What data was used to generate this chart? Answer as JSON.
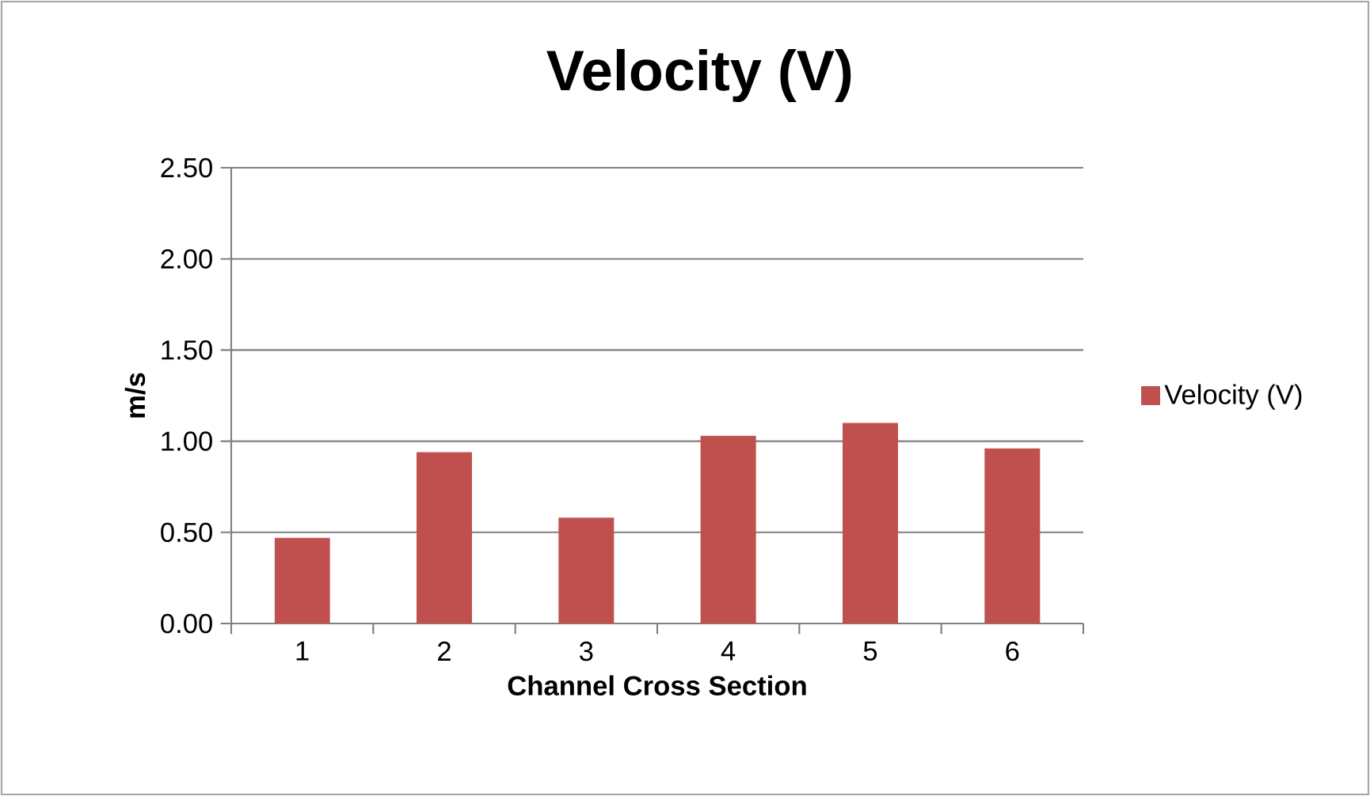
{
  "chart_data": {
    "type": "bar",
    "title": "Velocity (V)",
    "xlabel": "Channel Cross Section",
    "ylabel": "m/s",
    "categories": [
      "1",
      "2",
      "3",
      "4",
      "5",
      "6"
    ],
    "series": [
      {
        "name": "Velocity (V)",
        "color": "#c0504d",
        "values": [
          0.47,
          0.94,
          0.58,
          1.03,
          1.1,
          0.96
        ]
      }
    ],
    "ylim": [
      0,
      2.5
    ],
    "yticks": [
      {
        "value": 0,
        "label": "0.00"
      },
      {
        "value": 0.5,
        "label": "0.50"
      },
      {
        "value": 1,
        "label": "1.00"
      },
      {
        "value": 1.5,
        "label": "1.50"
      },
      {
        "value": 2,
        "label": "2.00"
      },
      {
        "value": 2.5,
        "label": "2.50"
      }
    ],
    "grid": "y",
    "legend": "right"
  }
}
